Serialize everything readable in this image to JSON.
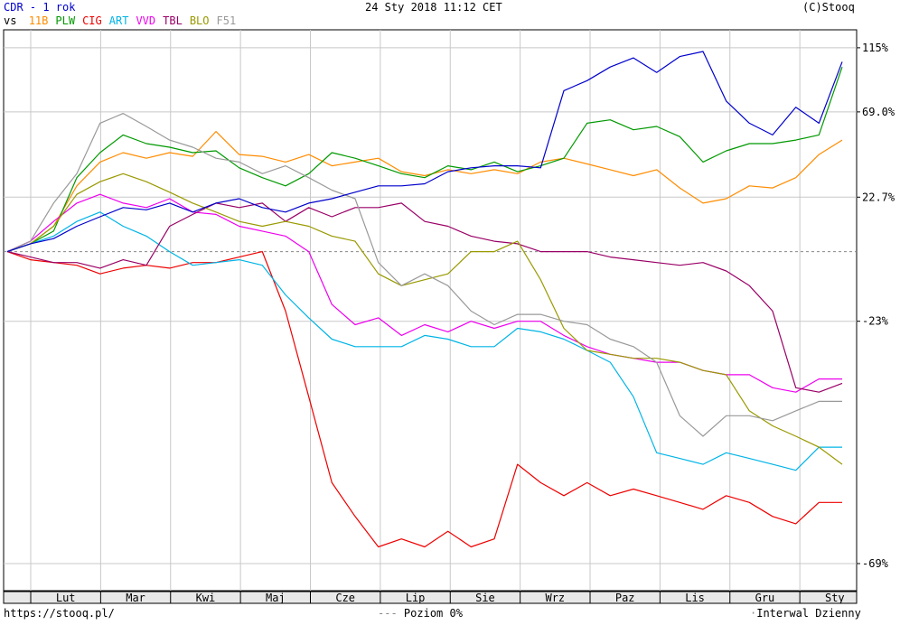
{
  "header": {
    "ticker": "CDR - 1 rok",
    "vs_label": "vs",
    "datetime": "24 Sty 2018 11:12 CET",
    "copyright": "(C)Stooq"
  },
  "footer": {
    "url": "https://stooq.pl/",
    "level_label": "Poziom 0%",
    "interval": "Interwal Dzienny"
  },
  "colors": {
    "CDR": "#0000cc",
    "11B": "#ff8c00",
    "PLW": "#009900",
    "CIG": "#ee0000",
    "ART": "#00b4e6",
    "VVD": "#ee00ee",
    "TBL": "#990066",
    "BLO": "#999900",
    "F51": "#999999"
  },
  "chart_data": {
    "type": "line",
    "title": "CDR - 1 rok",
    "xlabel": "",
    "ylabel": "",
    "yscale": "log (1 + change)",
    "x_ticks": [
      "Lut",
      "Mar",
      "Kwi",
      "Maj",
      "Cze",
      "Lip",
      "Sie",
      "Wrz",
      "Paz",
      "Lis",
      "Gru",
      "Sty"
    ],
    "y_ticks": [
      "115%",
      "69.0%",
      "22.7%",
      "-23%",
      "-69%"
    ],
    "y_tick_values": [
      115,
      69.0,
      22.7,
      -23,
      -69
    ],
    "reference_line": {
      "value": 0,
      "label": "Poziom 0%"
    },
    "grid": true,
    "legend_position": "top-left",
    "n_points": 37,
    "series": [
      {
        "name": "CDR",
        "values": [
          0,
          3,
          5,
          10,
          14,
          18,
          17,
          20,
          16,
          20,
          22,
          18,
          16,
          20,
          22,
          25,
          28,
          28,
          29,
          35,
          37,
          38,
          38,
          37,
          83,
          90,
          100,
          107,
          96,
          108,
          112,
          76,
          62,
          55,
          72,
          62,
          104
        ]
      },
      {
        "name": "11B",
        "values": [
          0,
          3,
          10,
          28,
          40,
          45,
          42,
          45,
          43,
          57,
          44,
          43,
          40,
          44,
          38,
          40,
          42,
          35,
          33,
          36,
          34,
          36,
          34,
          40,
          42,
          39,
          36,
          33,
          36,
          27,
          20,
          22,
          28,
          27,
          32,
          44,
          52
        ]
      },
      {
        "name": "PLW",
        "values": [
          0,
          3,
          8,
          32,
          45,
          55,
          50,
          48,
          45,
          46,
          37,
          32,
          28,
          34,
          45,
          42,
          38,
          34,
          32,
          38,
          36,
          40,
          35,
          38,
          42,
          62,
          64,
          58,
          60,
          54,
          40,
          46,
          50,
          50,
          52,
          55,
          100
        ]
      },
      {
        "name": "CIG",
        "values": [
          0,
          -3,
          -4,
          -5,
          -8,
          -6,
          -5,
          -6,
          -4,
          -4,
          -2,
          0,
          -20,
          -42,
          -58,
          -63,
          -67,
          -66,
          -67,
          -65,
          -67,
          -66,
          -55,
          -58,
          -60,
          -58,
          -60,
          -59,
          -60,
          -61,
          -62,
          -60,
          -61,
          -63,
          -64,
          -61,
          -61
        ]
      },
      {
        "name": "ART",
        "values": [
          0,
          3,
          6,
          12,
          16,
          10,
          6,
          0,
          -5,
          -4,
          -3,
          -5,
          -15,
          -22,
          -28,
          -30,
          -30,
          -30,
          -27,
          -28,
          -30,
          -30,
          -25,
          -26,
          -28,
          -31,
          -34,
          -42,
          -53,
          -54,
          -55,
          -53,
          -54,
          -55,
          -56,
          -52,
          -52
        ]
      },
      {
        "name": "VVD",
        "values": [
          0,
          4,
          12,
          20,
          24,
          20,
          18,
          22,
          16,
          15,
          10,
          8,
          6,
          0,
          -18,
          -24,
          -22,
          -27,
          -24,
          -26,
          -23,
          -25,
          -23,
          -23,
          -27,
          -30,
          -32,
          -33,
          -34,
          -34,
          -36,
          -37,
          -37,
          -40,
          -41,
          -38,
          -38
        ]
      },
      {
        "name": "TBL",
        "values": [
          0,
          -2,
          -4,
          -4,
          -6,
          -3,
          -5,
          10,
          15,
          20,
          18,
          20,
          12,
          18,
          14,
          18,
          18,
          20,
          12,
          10,
          6,
          4,
          3,
          0,
          0,
          0,
          -2,
          -3,
          -4,
          -5,
          -4,
          -7,
          -12,
          -20,
          -40,
          -41,
          -39
        ]
      },
      {
        "name": "BLO",
        "values": [
          0,
          3,
          10,
          24,
          30,
          34,
          30,
          25,
          20,
          16,
          12,
          10,
          12,
          10,
          6,
          4,
          -8,
          -12,
          -10,
          -8,
          0,
          0,
          4,
          -10,
          -25,
          -31,
          -32,
          -33,
          -33,
          -34,
          -36,
          -37,
          -45,
          -48,
          -50,
          -52,
          -55
        ]
      },
      {
        "name": "F51",
        "values": [
          0,
          4,
          20,
          34,
          62,
          68,
          60,
          52,
          48,
          42,
          40,
          34,
          38,
          32,
          26,
          22,
          -4,
          -12,
          -8,
          -12,
          -20,
          -24,
          -21,
          -21,
          -23,
          -24,
          -28,
          -30,
          -34,
          -46,
          -50,
          -46,
          -46,
          -47,
          -45,
          -43,
          -43
        ]
      }
    ]
  }
}
